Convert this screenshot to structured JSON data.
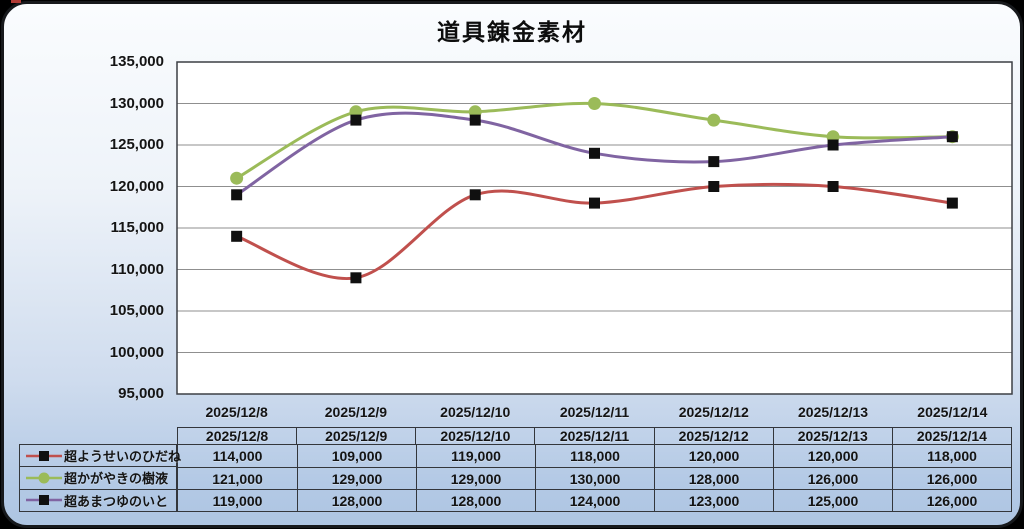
{
  "window": {
    "title": "道具錬金素材"
  },
  "colors": {
    "outside_background": "#000000",
    "panel_gradient_top": "#fafcfe",
    "panel_gradient_bottom": "#aec5e2",
    "plot_background": "#ffffff",
    "gridline": "#8f8f8f",
    "plot_border": "#3c3f44",
    "table_border": "#33363b",
    "text": "#141414",
    "marker_black": "#101010"
  },
  "chart_data": {
    "type": "line",
    "title": "道具錬金素材",
    "categories": [
      "2025/12/8",
      "2025/12/9",
      "2025/12/10",
      "2025/12/11",
      "2025/12/12",
      "2025/12/13",
      "2025/12/14"
    ],
    "series": [
      {
        "name": "超ようせいのひだね",
        "color": "#c0504d",
        "marker": "black-square",
        "values": [
          114000,
          109000,
          119000,
          118000,
          120000,
          120000,
          118000
        ]
      },
      {
        "name": "超かがやきの樹液",
        "color": "#9bbb59",
        "marker": "green-circle",
        "values": [
          121000,
          129000,
          129000,
          130000,
          128000,
          126000,
          126000
        ]
      },
      {
        "name": "超あまつゆのいと",
        "color": "#8064a2",
        "marker": "black-square",
        "values": [
          119000,
          128000,
          128000,
          124000,
          123000,
          125000,
          126000
        ]
      }
    ],
    "ylim": [
      95000,
      135000
    ],
    "ytick_step": 5000,
    "yticks": [
      95000,
      100000,
      105000,
      110000,
      115000,
      120000,
      125000,
      130000,
      135000
    ],
    "grid": "horizontal",
    "smooth_lines": true,
    "legend_position": "table-left",
    "data_table": true,
    "number_format": "comma"
  }
}
